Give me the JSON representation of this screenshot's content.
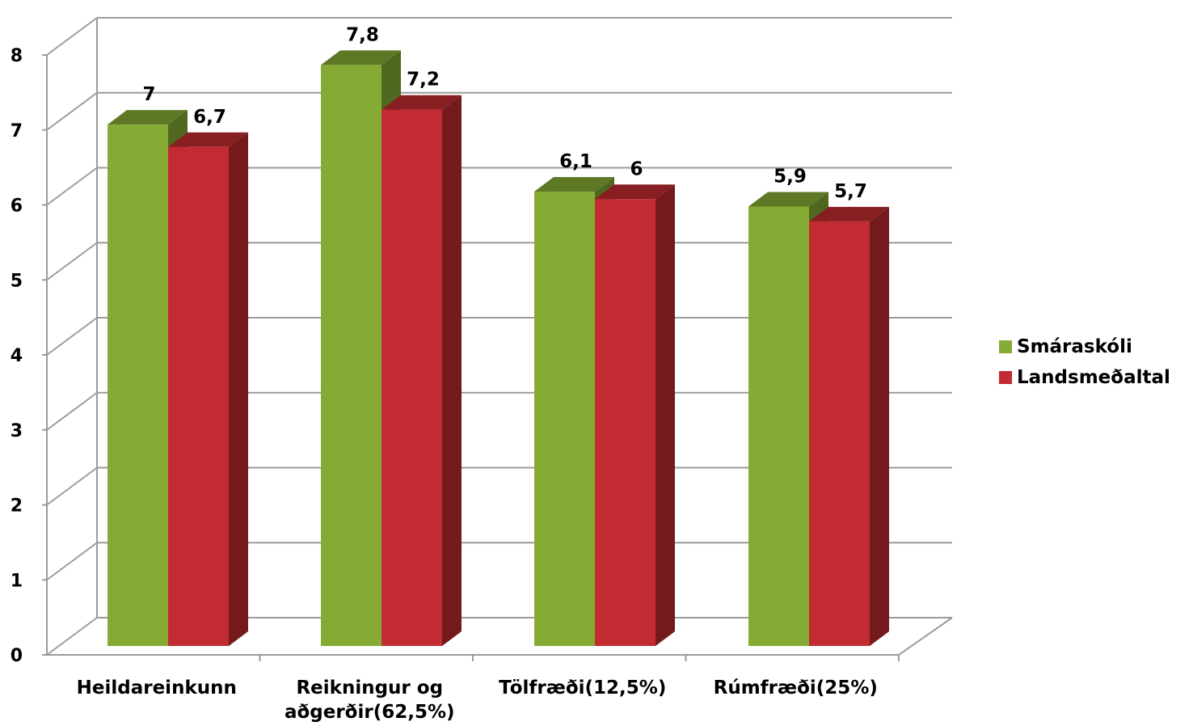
{
  "chart_data": {
    "type": "bar",
    "style": "3d-clustered-column",
    "categories": [
      [
        "Heildareinkunn"
      ],
      [
        "Reikningur og",
        "aðgerðir(62,5%)"
      ],
      [
        "Tölfræði(12,5%)"
      ],
      [
        "Rúmfræði(25%)"
      ]
    ],
    "series": [
      {
        "name": "Smáraskóli",
        "values": [
          7,
          7.8,
          6.1,
          5.9
        ],
        "labels": [
          "7",
          "7,8",
          "6,1",
          "5,9"
        ],
        "color": "#86AB35"
      },
      {
        "name": "Landsmeðaltal",
        "values": [
          6.7,
          7.2,
          6,
          5.7
        ],
        "labels": [
          "6,7",
          "7,2",
          "6",
          "5,7"
        ],
        "color": "#C12B31"
      }
    ],
    "ylim": [
      0,
      8
    ],
    "yticks": [
      "0",
      "1",
      "2",
      "3",
      "4",
      "5",
      "6",
      "7",
      "8"
    ],
    "grid": true,
    "legend_position": "right"
  }
}
